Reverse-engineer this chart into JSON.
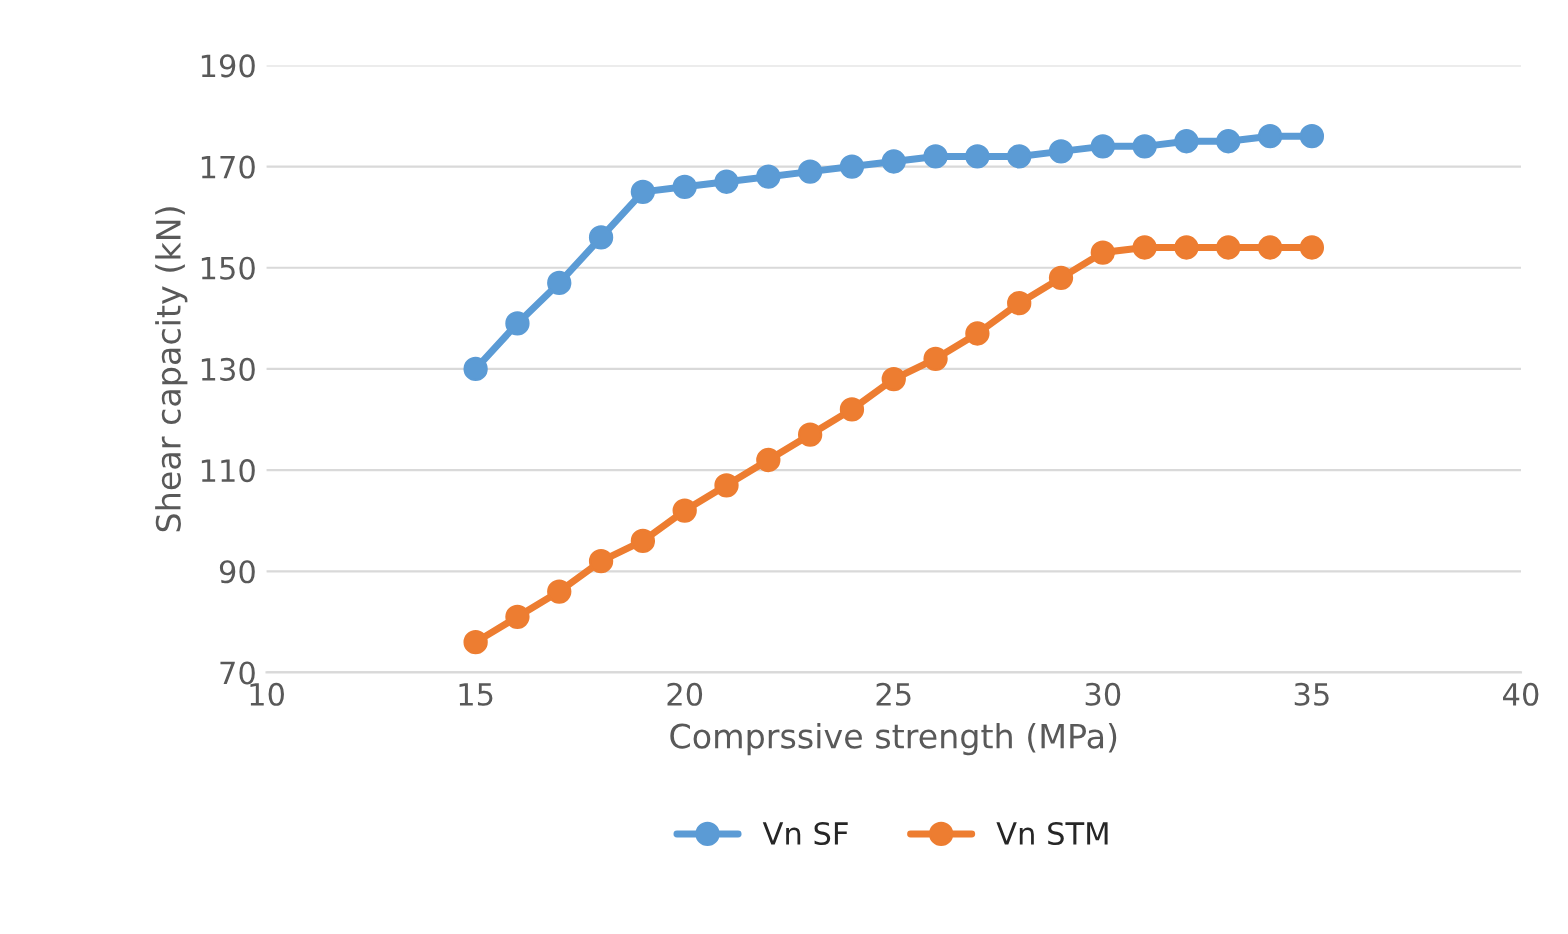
{
  "chart_data": {
    "type": "line",
    "xlabel": "Comprssive strength (MPa)",
    "ylabel": "Shear capacity (kN)",
    "x": [
      15,
      16,
      17,
      18,
      19,
      20,
      21,
      22,
      23,
      24,
      25,
      26,
      27,
      28,
      29,
      30,
      31,
      32,
      33,
      34,
      35
    ],
    "series": [
      {
        "name": "Vn SF",
        "color": "#5b9bd5",
        "values": [
          130,
          139,
          147,
          156,
          165,
          166,
          167,
          168,
          169,
          170,
          171,
          172,
          172,
          172,
          173,
          174,
          174,
          175,
          175,
          176,
          176
        ]
      },
      {
        "name": "Vn STM",
        "color": "#ed7d31",
        "values": [
          76,
          81,
          86,
          92,
          96,
          102,
          107,
          112,
          117,
          122,
          128,
          132,
          137,
          143,
          148,
          153,
          154,
          154,
          154,
          154,
          154
        ]
      }
    ],
    "xlim": [
      10,
      40
    ],
    "xticks": [
      10,
      15,
      20,
      25,
      30,
      35,
      40
    ],
    "ylim": [
      70,
      190
    ],
    "yticks": [
      70,
      90,
      110,
      130,
      150,
      170,
      190
    ],
    "grid": "y",
    "legend": "bottom",
    "marker": "circle",
    "line_style": "solid"
  }
}
